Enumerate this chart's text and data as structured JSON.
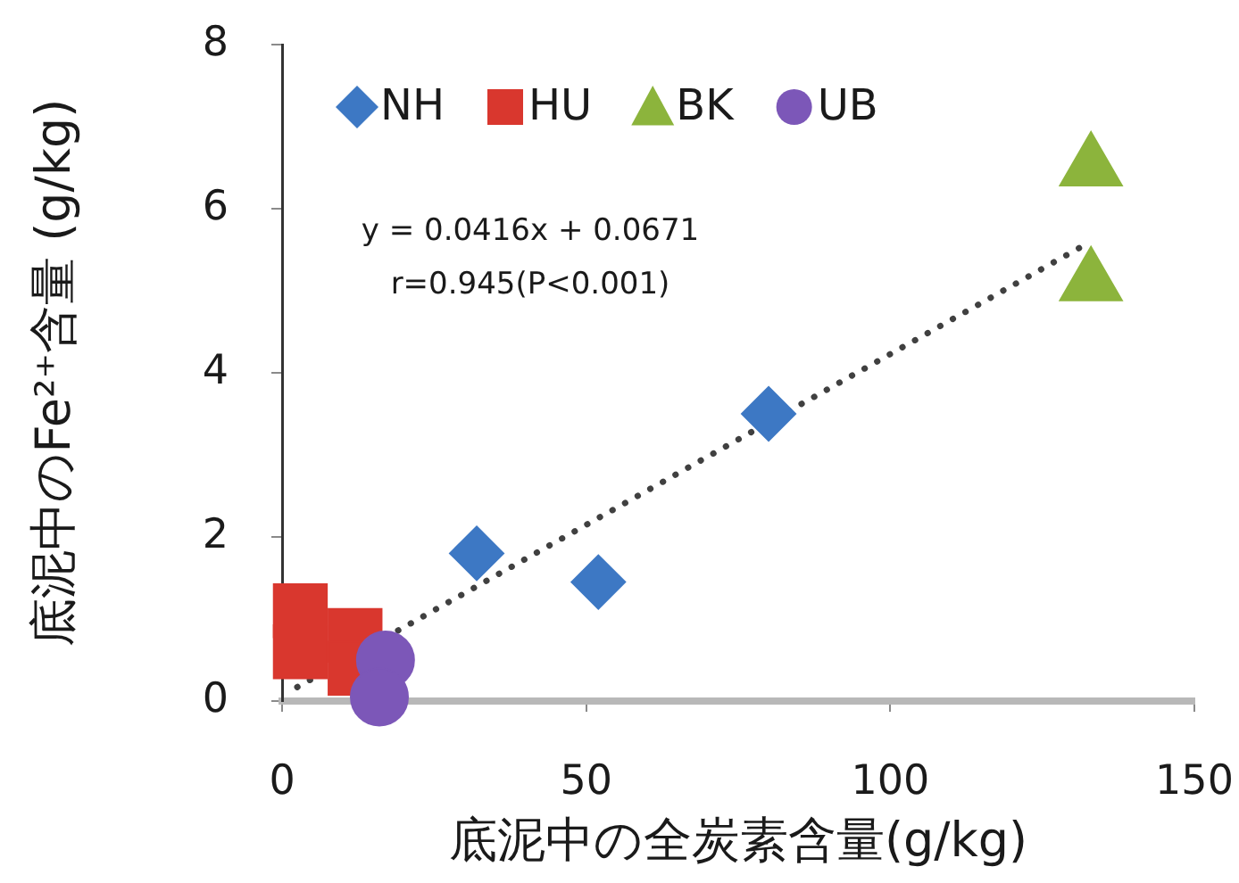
{
  "chart_data": {
    "type": "scatter",
    "xlabel": "底泥中の全炭素含量(g/kg)",
    "ylabel": "底泥中のFe²⁺含量 (g/kg)",
    "annotations": [
      "y = 0.0416x + 0.0671",
      "r=0.945(P<0.001)"
    ],
    "series": [
      {
        "name": "NH",
        "color": "#3d78c4",
        "marker": "diamond",
        "x": [
          32,
          52,
          80
        ],
        "values": [
          1.8,
          1.45,
          3.5
        ]
      },
      {
        "name": "HU",
        "color": "#d9372e",
        "marker": "square",
        "x": [
          3,
          3,
          12,
          12
        ],
        "values": [
          1.1,
          0.6,
          0.8,
          0.4
        ]
      },
      {
        "name": "BK",
        "color": "#8cb43c",
        "marker": "triangle",
        "x": [
          133,
          133
        ],
        "values": [
          6.5,
          5.1
        ]
      },
      {
        "name": "UB",
        "color": "#7c57b8",
        "marker": "circle",
        "x": [
          17,
          16
        ],
        "values": [
          0.5,
          0.05
        ]
      },
      {
        "type": "line",
        "color": "#404040",
        "marker": "none",
        "line_style": "dotted",
        "x": [
          2.5,
          132
        ],
        "values": [
          0.17,
          5.56
        ]
      }
    ],
    "xlim": [
      0,
      150
    ],
    "xticks": [
      0,
      50,
      100,
      150
    ],
    "ylim": [
      0,
      8
    ],
    "yticks": [
      0,
      2,
      4,
      6,
      8
    ],
    "grid": false,
    "legend": "top left"
  }
}
